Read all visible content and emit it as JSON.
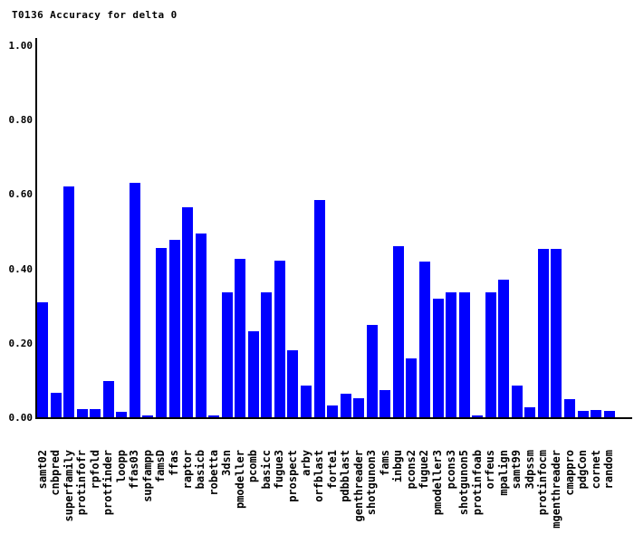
{
  "title": "T0136 Accuracy for delta 0",
  "colors": {
    "bar": "#0000ff",
    "axis": "#000000",
    "text": "#000000",
    "background": "#ffffff"
  },
  "y_axis": {
    "ticks": [
      {
        "label": "1.00",
        "value": 1.0
      },
      {
        "label": "0.80",
        "value": 0.8
      },
      {
        "label": "0.60",
        "value": 0.6
      },
      {
        "label": "0.40",
        "value": 0.4
      },
      {
        "label": "0.20",
        "value": 0.2
      },
      {
        "label": "0.00",
        "value": 0.0
      }
    ]
  },
  "chart_data": {
    "type": "bar",
    "title": "T0136 Accuracy for delta 0",
    "xlabel": "",
    "ylabel": "",
    "ylim": [
      0,
      1
    ],
    "yticks": [
      0.0,
      0.2,
      0.4,
      0.6,
      0.8,
      1.0
    ],
    "grid": false,
    "legend": false,
    "bar_color": "#0000ff",
    "categories": [
      "samt02",
      "cnbpred",
      "superfamily",
      "protinfofr",
      "rpfold",
      "protfinder",
      "loopp",
      "ffas03",
      "supfampp",
      "famsD",
      "ffas",
      "raptor",
      "basicb",
      "robetta",
      "3dsn",
      "pmodeller",
      "pcomb",
      "basicc",
      "fugue3",
      "prospect",
      "arby",
      "orfblast",
      "forte1",
      "pdbblast",
      "genthreader",
      "shotgunon3",
      "fams",
      "inbgu",
      "pcons2",
      "fugue2",
      "pmodeller3",
      "pcons3",
      "shotgunon5",
      "protinfoab",
      "orfeus",
      "mpalign",
      "samt99",
      "3dpssm",
      "protinfocm",
      "mgenthreader",
      "cmappro",
      "pdgCon",
      "cornet",
      "random"
    ],
    "values": [
      0.31,
      0.065,
      0.62,
      0.022,
      0.022,
      0.098,
      0.015,
      0.629,
      0.006,
      0.455,
      0.477,
      0.564,
      0.494,
      0.006,
      0.336,
      0.425,
      0.232,
      0.336,
      0.42,
      0.179,
      0.085,
      0.584,
      0.032,
      0.063,
      0.052,
      0.248,
      0.073,
      0.459,
      0.157,
      0.418,
      0.319,
      0.336,
      0.336,
      0.004,
      0.336,
      0.37,
      0.086,
      0.026,
      0.453,
      0.453,
      0.049,
      0.016,
      0.02,
      0.016
    ]
  }
}
